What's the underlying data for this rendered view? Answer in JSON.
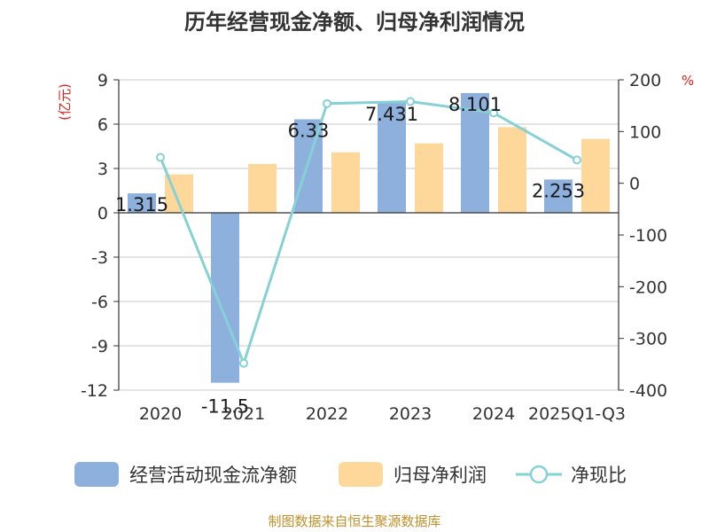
{
  "chart_data": {
    "type": "bar",
    "title": "历年经营现金净额、归母净利润情况",
    "categories": [
      "2020",
      "2021",
      "2022",
      "2023",
      "2024",
      "2025Q1-Q3"
    ],
    "series": [
      {
        "name": "经营活动现金流净额",
        "kind": "bar",
        "axis": "left",
        "color": "#8eb0dc",
        "values": [
          1.315,
          -11.5,
          6.33,
          7.431,
          8.101,
          2.253
        ],
        "labels": [
          "1.315",
          "-11.5",
          "6.33",
          "7.431",
          "8.101",
          "2.253"
        ]
      },
      {
        "name": "归母净利润",
        "kind": "bar",
        "axis": "left",
        "color": "#fdd89a",
        "values": [
          2.6,
          3.3,
          4.1,
          4.7,
          5.8,
          5.0
        ]
      },
      {
        "name": "净现比",
        "kind": "line",
        "axis": "right",
        "color": "#86d1d6",
        "values": [
          50,
          -348,
          154,
          158,
          136,
          45
        ]
      }
    ],
    "ylabel": "(亿元)",
    "ylim": [
      -12,
      9
    ],
    "yticks": [
      9,
      6,
      3,
      0,
      -3,
      -6,
      -9,
      -12
    ],
    "y2label": "%",
    "y2lim": [
      -400,
      200
    ],
    "y2ticks": [
      200,
      100,
      0,
      -100,
      -200,
      -300,
      -400
    ],
    "grid": true,
    "legend_position": "bottom"
  },
  "source": "制图数据来自恒生聚源数据库"
}
